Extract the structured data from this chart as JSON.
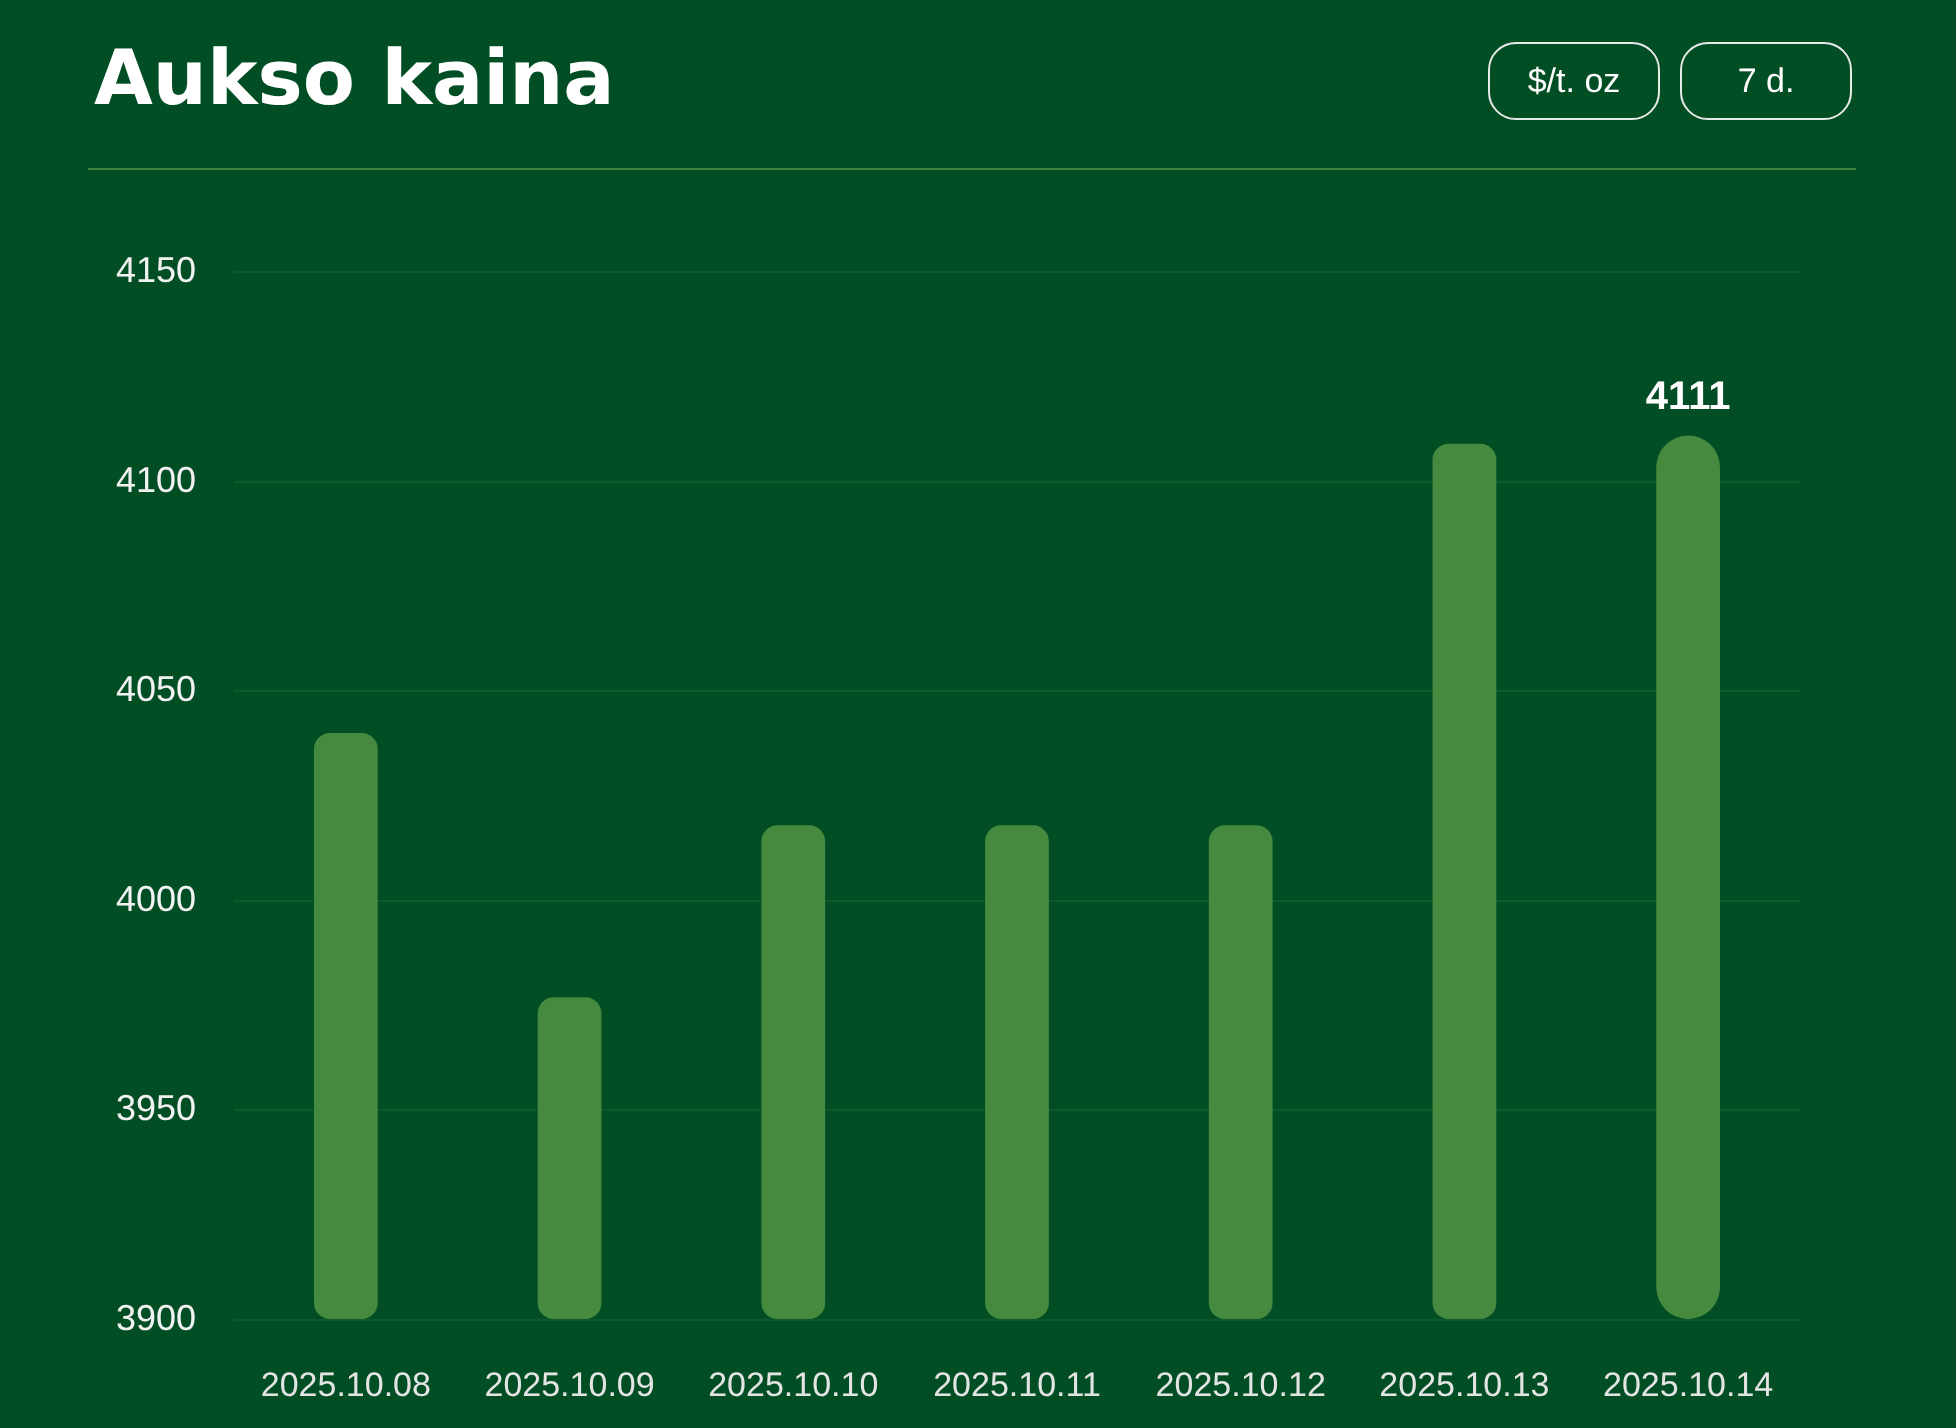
{
  "chart_data": {
    "type": "bar",
    "title": "Aukso kaina",
    "annotations": [
      "$/t. oz",
      "7 d."
    ],
    "categories": [
      "2025.10.08",
      "2025.10.09",
      "2025.10.10",
      "2025.10.11",
      "2025.10.12",
      "2025.10.13",
      "2025.10.14"
    ],
    "values": [
      4040,
      3977,
      4018,
      4018,
      4018,
      4109,
      4111
    ],
    "color": "#458a3f",
    "ylim": [
      3900,
      4150
    ],
    "yticks": [
      3900,
      3950,
      4000,
      4050,
      4100,
      4150
    ],
    "grid": "y",
    "value_labels": [
      null,
      null,
      null,
      null,
      null,
      null,
      "4111"
    ]
  }
}
